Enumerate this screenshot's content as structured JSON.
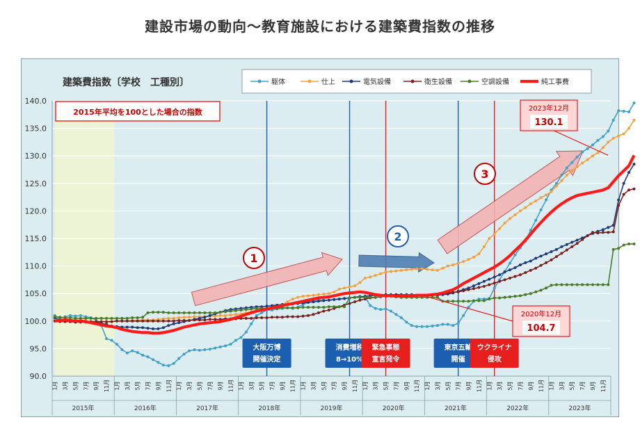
{
  "page_title": "建設市場の動向～教育施設における建築費指数の推移",
  "chart_data": {
    "type": "line",
    "title": "建築費指数〔学校　工種別〕",
    "subtitle": "2015年平均を100とした場合の指数",
    "ylim": [
      90,
      140
    ],
    "y_ticks": [
      "140.0",
      "135.0",
      "130.0",
      "125.0",
      "120.0",
      "115.0",
      "110.0",
      "105.0",
      "100.0",
      "95.0",
      "90.0"
    ],
    "years": [
      "2015年",
      "2016年",
      "2017年",
      "2018年",
      "2019年",
      "2020年",
      "2021年",
      "2022年",
      "2023年"
    ],
    "month_labels": [
      "1月",
      "3月",
      "5月",
      "7月",
      "9月",
      "11月"
    ],
    "series": [
      {
        "name": "躯体",
        "color": "#3fa0c8",
        "width": 1.6,
        "values": [
          101.0,
          100.5,
          100.8,
          101.0,
          100.9,
          101.0,
          100.8,
          100.6,
          100.2,
          99.2,
          96.8,
          96.5,
          95.8,
          94.8,
          94.2,
          94.6,
          94.3,
          93.8,
          93.5,
          93.0,
          92.5,
          92.0,
          91.9,
          92.3,
          93.2,
          94.0,
          94.6,
          94.8,
          94.7,
          94.8,
          94.9,
          95.1,
          95.3,
          95.5,
          95.8,
          96.5,
          97.0,
          98.0,
          99.5,
          101.0,
          101.5,
          102.0,
          102.0,
          102.2,
          102.3,
          102.4,
          102.3,
          102.5,
          103.0,
          103.4,
          103.6,
          103.8,
          103.8,
          103.8,
          103.9,
          104.0,
          104.1,
          104.2,
          104.3,
          104.5,
          104.3,
          102.8,
          102.3,
          102.1,
          102.2,
          101.8,
          101.2,
          100.6,
          99.8,
          99.2,
          99.0,
          99.0,
          99.0,
          99.1,
          99.2,
          99.4,
          99.4,
          99.2,
          99.6,
          101.0,
          102.5,
          103.6,
          104.0,
          104.0,
          104.1,
          106.0,
          107.5,
          109.0,
          110.5,
          112.0,
          113.3,
          114.5,
          116.5,
          118.3,
          120.2,
          122.0,
          123.8,
          125.0,
          126.5,
          127.8,
          128.8,
          129.8,
          130.7,
          131.3,
          132.0,
          132.8,
          133.5,
          134.5,
          136.5,
          138.2,
          138.1,
          138.0,
          139.6
        ]
      },
      {
        "name": "仕上",
        "color": "#f5a040",
        "width": 1.6,
        "values": [
          100.2,
          100.2,
          100.2,
          100.1,
          100.1,
          100.0,
          100.0,
          99.9,
          99.9,
          99.9,
          99.8,
          99.9,
          100.0,
          100.0,
          100.0,
          100.1,
          100.1,
          100.2,
          100.2,
          100.2,
          100.3,
          100.4,
          100.5,
          100.5,
          100.6,
          100.7,
          100.7,
          100.8,
          100.8,
          100.8,
          100.9,
          100.9,
          101.0,
          101.0,
          101.1,
          101.2,
          101.3,
          101.5,
          101.7,
          101.9,
          102.1,
          102.3,
          102.5,
          102.8,
          103.0,
          103.5,
          104.0,
          104.3,
          104.5,
          104.6,
          104.7,
          104.8,
          104.9,
          105.0,
          105.3,
          105.8,
          106.0,
          106.2,
          106.4,
          107.0,
          107.8,
          108.0,
          108.3,
          108.6,
          108.9,
          109.0,
          109.1,
          109.2,
          109.3,
          109.4,
          109.5,
          109.5,
          109.4,
          109.3,
          109.2,
          109.6,
          110.0,
          110.2,
          110.5,
          110.8,
          111.2,
          111.6,
          112.2,
          113.5,
          115.0,
          115.8,
          116.8,
          117.8,
          118.6,
          119.3,
          120.0,
          120.6,
          121.3,
          121.8,
          122.4,
          122.9,
          123.5,
          124.5,
          125.5,
          126.5,
          127.3,
          128.0,
          128.7,
          129.3,
          130.0,
          130.6,
          131.5,
          132.5,
          133.2,
          133.6,
          134.0,
          135.0,
          136.5
        ]
      },
      {
        "name": "電気設備",
        "color": "#1c3a78",
        "width": 1.6,
        "values": [
          100.6,
          100.2,
          100.1,
          99.9,
          99.8,
          100.0,
          99.9,
          99.8,
          99.8,
          99.6,
          99.4,
          99.1,
          99.0,
          98.9,
          98.9,
          98.9,
          98.8,
          98.8,
          98.7,
          98.6,
          98.6,
          98.8,
          99.2,
          99.5,
          99.7,
          99.9,
          100.1,
          100.3,
          100.5,
          100.7,
          101.0,
          101.3,
          101.6,
          101.9,
          102.1,
          102.2,
          102.3,
          102.4,
          102.5,
          102.6,
          102.6,
          102.7,
          102.8,
          102.9,
          103.0,
          103.0,
          103.1,
          103.2,
          103.3,
          103.4,
          103.5,
          103.6,
          103.7,
          103.8,
          103.9,
          104.0,
          104.1,
          104.2,
          104.3,
          104.4,
          104.5,
          104.6,
          104.7,
          104.7,
          104.8,
          104.8,
          104.8,
          104.8,
          104.8,
          104.8,
          104.7,
          104.7,
          104.7,
          104.7,
          104.7,
          104.8,
          104.9,
          105.1,
          105.4,
          105.7,
          106.0,
          106.4,
          106.8,
          107.2,
          107.6,
          108.0,
          108.4,
          108.9,
          109.3,
          109.7,
          110.2,
          110.6,
          110.9,
          111.4,
          111.8,
          112.2,
          112.6,
          113.0,
          113.5,
          113.9,
          114.3,
          114.7,
          115.1,
          115.5,
          115.9,
          116.3,
          116.6,
          117.0,
          117.4,
          122.0,
          125.0,
          127.0,
          128.5
        ]
      },
      {
        "name": "衛生設備",
        "color": "#7a1f1f",
        "width": 1.6,
        "values": [
          100.0,
          99.9,
          99.9,
          99.9,
          99.8,
          99.8,
          99.8,
          99.9,
          99.9,
          99.9,
          99.9,
          99.9,
          100.0,
          100.0,
          100.0,
          100.0,
          100.0,
          100.0,
          100.0,
          100.0,
          100.0,
          100.0,
          100.0,
          100.0,
          100.1,
          100.1,
          100.1,
          100.2,
          100.2,
          100.2,
          100.3,
          100.3,
          100.3,
          100.4,
          100.4,
          100.4,
          100.5,
          100.5,
          100.5,
          100.6,
          100.6,
          100.6,
          100.7,
          100.7,
          100.7,
          100.8,
          100.8,
          100.8,
          100.9,
          101.0,
          101.2,
          101.5,
          101.8,
          102.0,
          102.3,
          102.6,
          102.9,
          103.2,
          103.5,
          103.8,
          104.0,
          104.2,
          104.3,
          104.4,
          104.5,
          104.5,
          104.5,
          104.5,
          104.5,
          104.5,
          104.6,
          104.6,
          104.7,
          104.8,
          104.9,
          105.0,
          105.1,
          105.2,
          105.3,
          105.5,
          105.7,
          105.9,
          106.1,
          106.3,
          106.6,
          106.9,
          107.2,
          107.5,
          107.8,
          108.1,
          108.4,
          108.8,
          109.2,
          109.6,
          110.1,
          110.6,
          111.1,
          111.7,
          112.3,
          112.9,
          113.5,
          114.1,
          114.8,
          115.5,
          116.1,
          116.0,
          116.1,
          116.1,
          116.2,
          121.0,
          123.0,
          123.8,
          124.0
        ]
      },
      {
        "name": "空調設備",
        "color": "#4a7a26",
        "width": 1.6,
        "values": [
          100.8,
          100.7,
          100.6,
          100.6,
          100.5,
          100.5,
          100.5,
          100.5,
          100.5,
          100.5,
          100.5,
          100.5,
          100.5,
          100.5,
          100.5,
          100.6,
          100.6,
          100.7,
          101.5,
          101.6,
          101.6,
          101.6,
          101.5,
          101.5,
          101.5,
          101.5,
          101.5,
          101.5,
          101.5,
          101.5,
          101.5,
          101.5,
          101.6,
          101.7,
          101.8,
          101.9,
          102.0,
          102.1,
          102.2,
          102.3,
          102.3,
          102.3,
          102.3,
          102.3,
          102.4,
          102.4,
          102.4,
          102.4,
          102.5,
          102.5,
          102.5,
          102.5,
          102.5,
          102.6,
          102.6,
          102.6,
          102.6,
          104.2,
          104.3,
          104.3,
          104.3,
          104.3,
          104.3,
          104.4,
          104.5,
          104.5,
          104.4,
          104.3,
          104.3,
          104.3,
          104.3,
          104.3,
          104.3,
          104.3,
          104.3,
          103.6,
          103.6,
          103.6,
          103.6,
          103.6,
          103.6,
          103.7,
          103.7,
          103.7,
          104.0,
          104.2,
          104.2,
          104.3,
          104.4,
          104.5,
          104.6,
          104.8,
          105.0,
          105.3,
          105.6,
          106.0,
          106.5,
          106.6,
          106.6,
          106.6,
          106.6,
          106.6,
          106.6,
          106.6,
          106.6,
          106.6,
          106.6,
          106.6,
          113.0,
          113.2,
          113.8,
          114.0,
          114.0
        ]
      },
      {
        "name": "純工事費",
        "color": "#ff1a1a",
        "width": 4.2,
        "values": [
          100.0,
          100.1,
          100.2,
          100.1,
          100.0,
          100.0,
          99.9,
          99.7,
          99.5,
          99.3,
          99.1,
          99.0,
          98.8,
          98.5,
          98.3,
          98.1,
          98.0,
          97.9,
          97.9,
          97.8,
          97.8,
          97.9,
          98.1,
          98.3,
          98.6,
          98.9,
          99.1,
          99.3,
          99.5,
          99.6,
          99.7,
          99.8,
          99.9,
          100.1,
          100.3,
          100.6,
          100.9,
          101.2,
          101.5,
          101.8,
          102.0,
          102.2,
          102.4,
          102.6,
          102.8,
          103.0,
          103.2,
          103.4,
          103.6,
          103.8,
          104.0,
          104.2,
          104.3,
          104.4,
          104.6,
          104.8,
          105.0,
          105.1,
          105.2,
          105.3,
          105.2,
          105.0,
          104.8,
          104.7,
          104.6,
          104.6,
          104.5,
          104.6,
          104.6,
          104.6,
          104.7,
          104.7,
          104.7,
          104.8,
          104.9,
          105.1,
          105.4,
          105.7,
          106.2,
          106.8,
          107.3,
          107.8,
          108.3,
          108.8,
          109.3,
          109.8,
          110.4,
          111.1,
          111.9,
          112.8,
          113.7,
          114.7,
          115.8,
          116.9,
          117.9,
          118.9,
          119.8,
          120.6,
          121.3,
          121.9,
          122.4,
          122.8,
          123.0,
          123.2,
          123.4,
          123.6,
          123.8,
          124.2,
          125.3,
          126.4,
          127.3,
          128.2,
          130.1
        ]
      }
    ],
    "events": [
      {
        "label": "大阪万博\n開催決定",
        "line_color": "#1c5fb0",
        "box_color": "#1c5fb0",
        "month": 41
      },
      {
        "label": "消費増税\n8→10%",
        "line_color": "#1c5fb0",
        "box_color": "#1c5fb0",
        "month": 57
      },
      {
        "label": "緊急事態\n宣言発令",
        "line_color": "#e61e1e",
        "box_color": "#e61e1e",
        "month": 64
      },
      {
        "label": "東京五輪\n開催",
        "line_color": "#1c5fb0",
        "box_color": "#1c5fb0",
        "month": 78
      },
      {
        "label": "ウクライナ\n侵攻",
        "line_color": "#e61e1e",
        "box_color": "#e61e1e",
        "month": 85
      }
    ],
    "annotations": [
      {
        "id": "2023",
        "label": "2023年12月",
        "value": "130.1"
      },
      {
        "id": "2020",
        "label": "2020年12月",
        "value": "104.7"
      }
    ],
    "markers": [
      "1",
      "2",
      "3"
    ],
    "legend_position": "top"
  }
}
